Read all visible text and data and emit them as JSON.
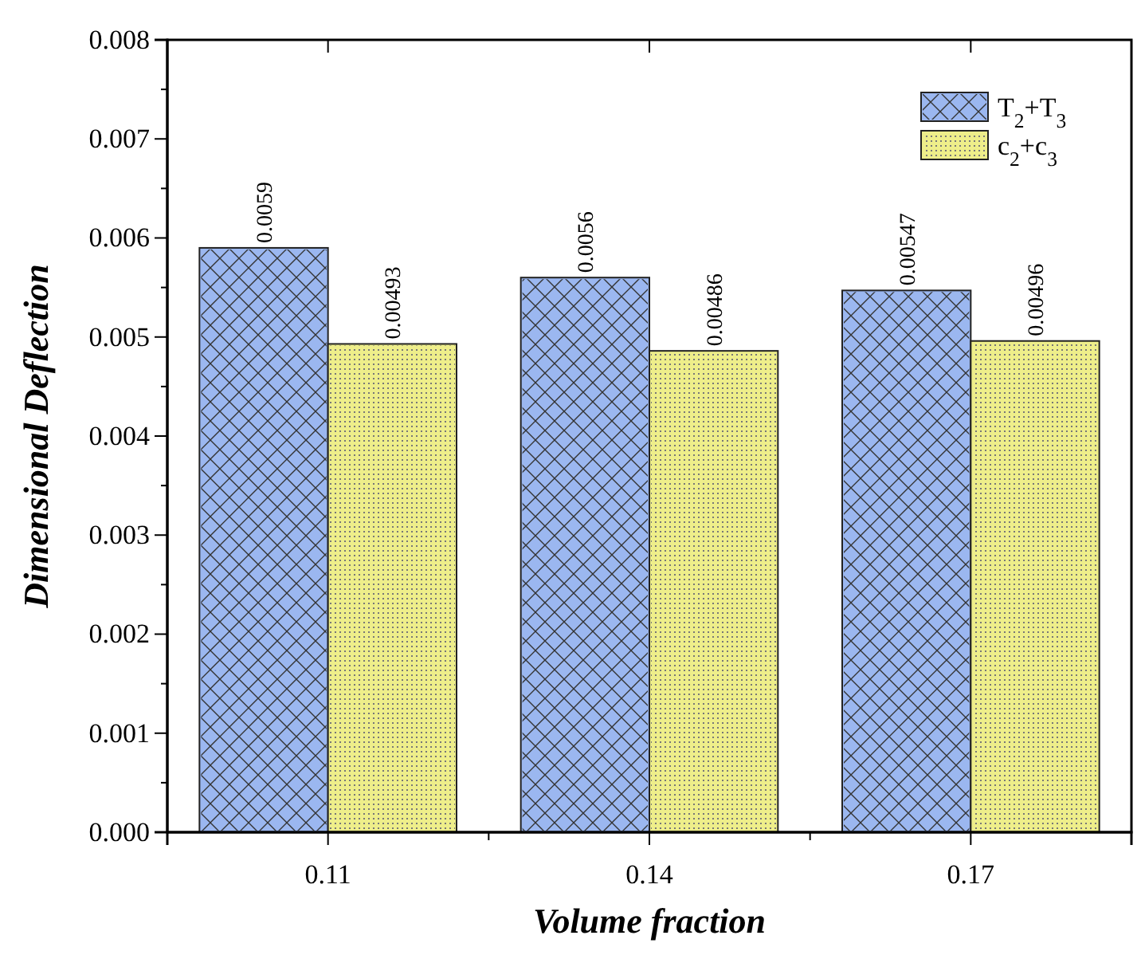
{
  "chart_data": {
    "type": "bar",
    "xlabel": "Volume fraction",
    "ylabel": "Dimensional Deflection",
    "categories": [
      "0.11",
      "0.14",
      "0.17"
    ],
    "series": [
      {
        "name": "T$_{2}$+T$_{3}$",
        "color": "#9bb7f0",
        "values": [
          0.0059,
          0.0056,
          0.00547
        ]
      },
      {
        "name": "c$_{2}$+c$_{3}$",
        "color": "#eeee8a",
        "values": [
          0.00493,
          0.00486,
          0.00496
        ]
      }
    ],
    "ylim": [
      0,
      0.008
    ],
    "yticks": [
      {
        "value": 0,
        "label": "0.000"
      },
      {
        "value": 0.001,
        "label": "0.001"
      },
      {
        "value": 0.002,
        "label": "0.002"
      },
      {
        "value": 0.003,
        "label": "0.003"
      },
      {
        "value": 0.004,
        "label": "0.004"
      },
      {
        "value": 0.005,
        "label": "0.005"
      },
      {
        "value": 0.006,
        "label": "0.006"
      },
      {
        "value": 0.007,
        "label": "0.007"
      },
      {
        "value": 0.008,
        "label": "0.008"
      }
    ],
    "data_labels": true,
    "legend": "top right",
    "grid": false
  }
}
